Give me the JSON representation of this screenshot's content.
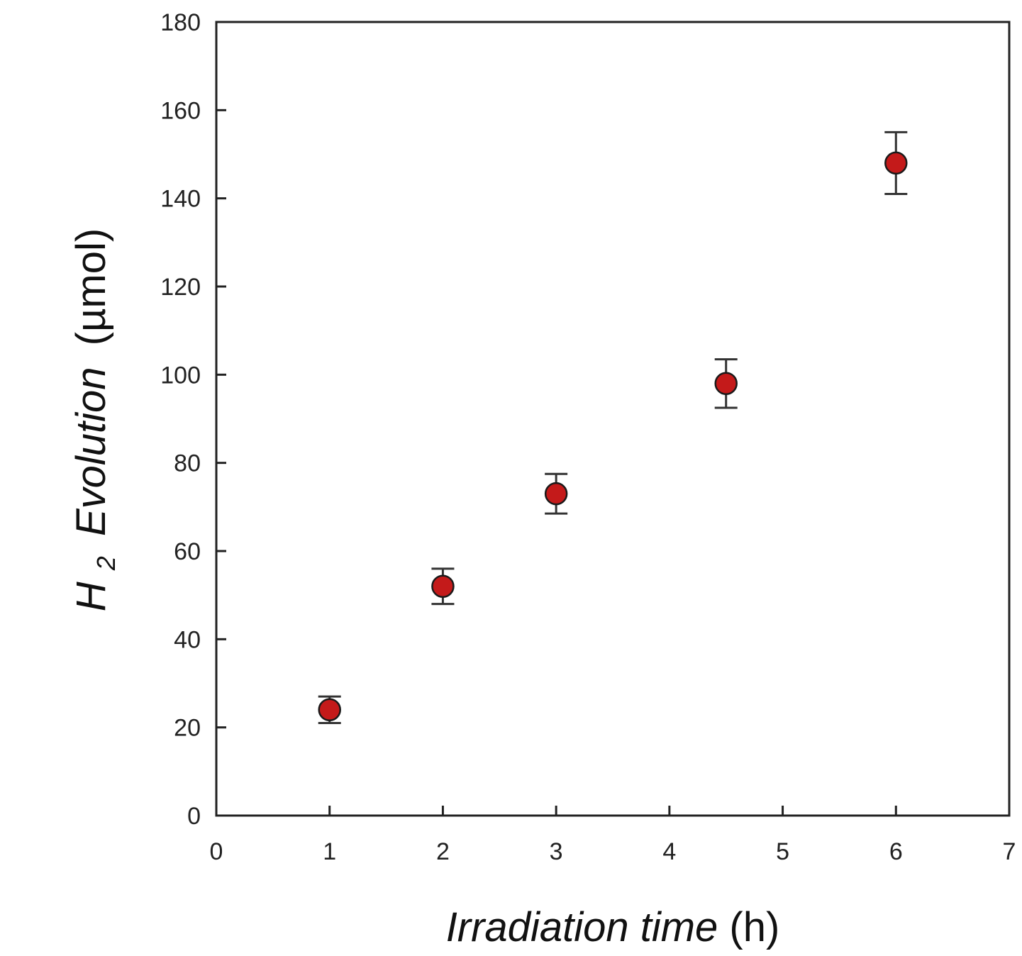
{
  "chart_data": {
    "type": "scatter",
    "title": "",
    "x_axis": {
      "label_italic": "Irradiation time",
      "label_unit": "(h)",
      "range": [
        0,
        7
      ],
      "ticks": [
        0,
        1,
        2,
        3,
        4,
        5,
        6,
        7
      ]
    },
    "y_axis": {
      "label_prefix": "H",
      "label_subscript": "2",
      "label_italic": "Evolution",
      "label_unit": "(µmol)",
      "range": [
        0,
        180
      ],
      "ticks": [
        0,
        20,
        40,
        60,
        80,
        100,
        120,
        140,
        160,
        180
      ]
    },
    "grid": false,
    "legend": "none",
    "marker_color": "#c41a1a",
    "points": [
      {
        "x": 1,
        "y": 24,
        "err": 3
      },
      {
        "x": 2,
        "y": 52,
        "err": 4
      },
      {
        "x": 3,
        "y": 73,
        "err": 4.5
      },
      {
        "x": 4.5,
        "y": 98,
        "err": 5.5
      },
      {
        "x": 6,
        "y": 148,
        "err": 7
      }
    ]
  }
}
